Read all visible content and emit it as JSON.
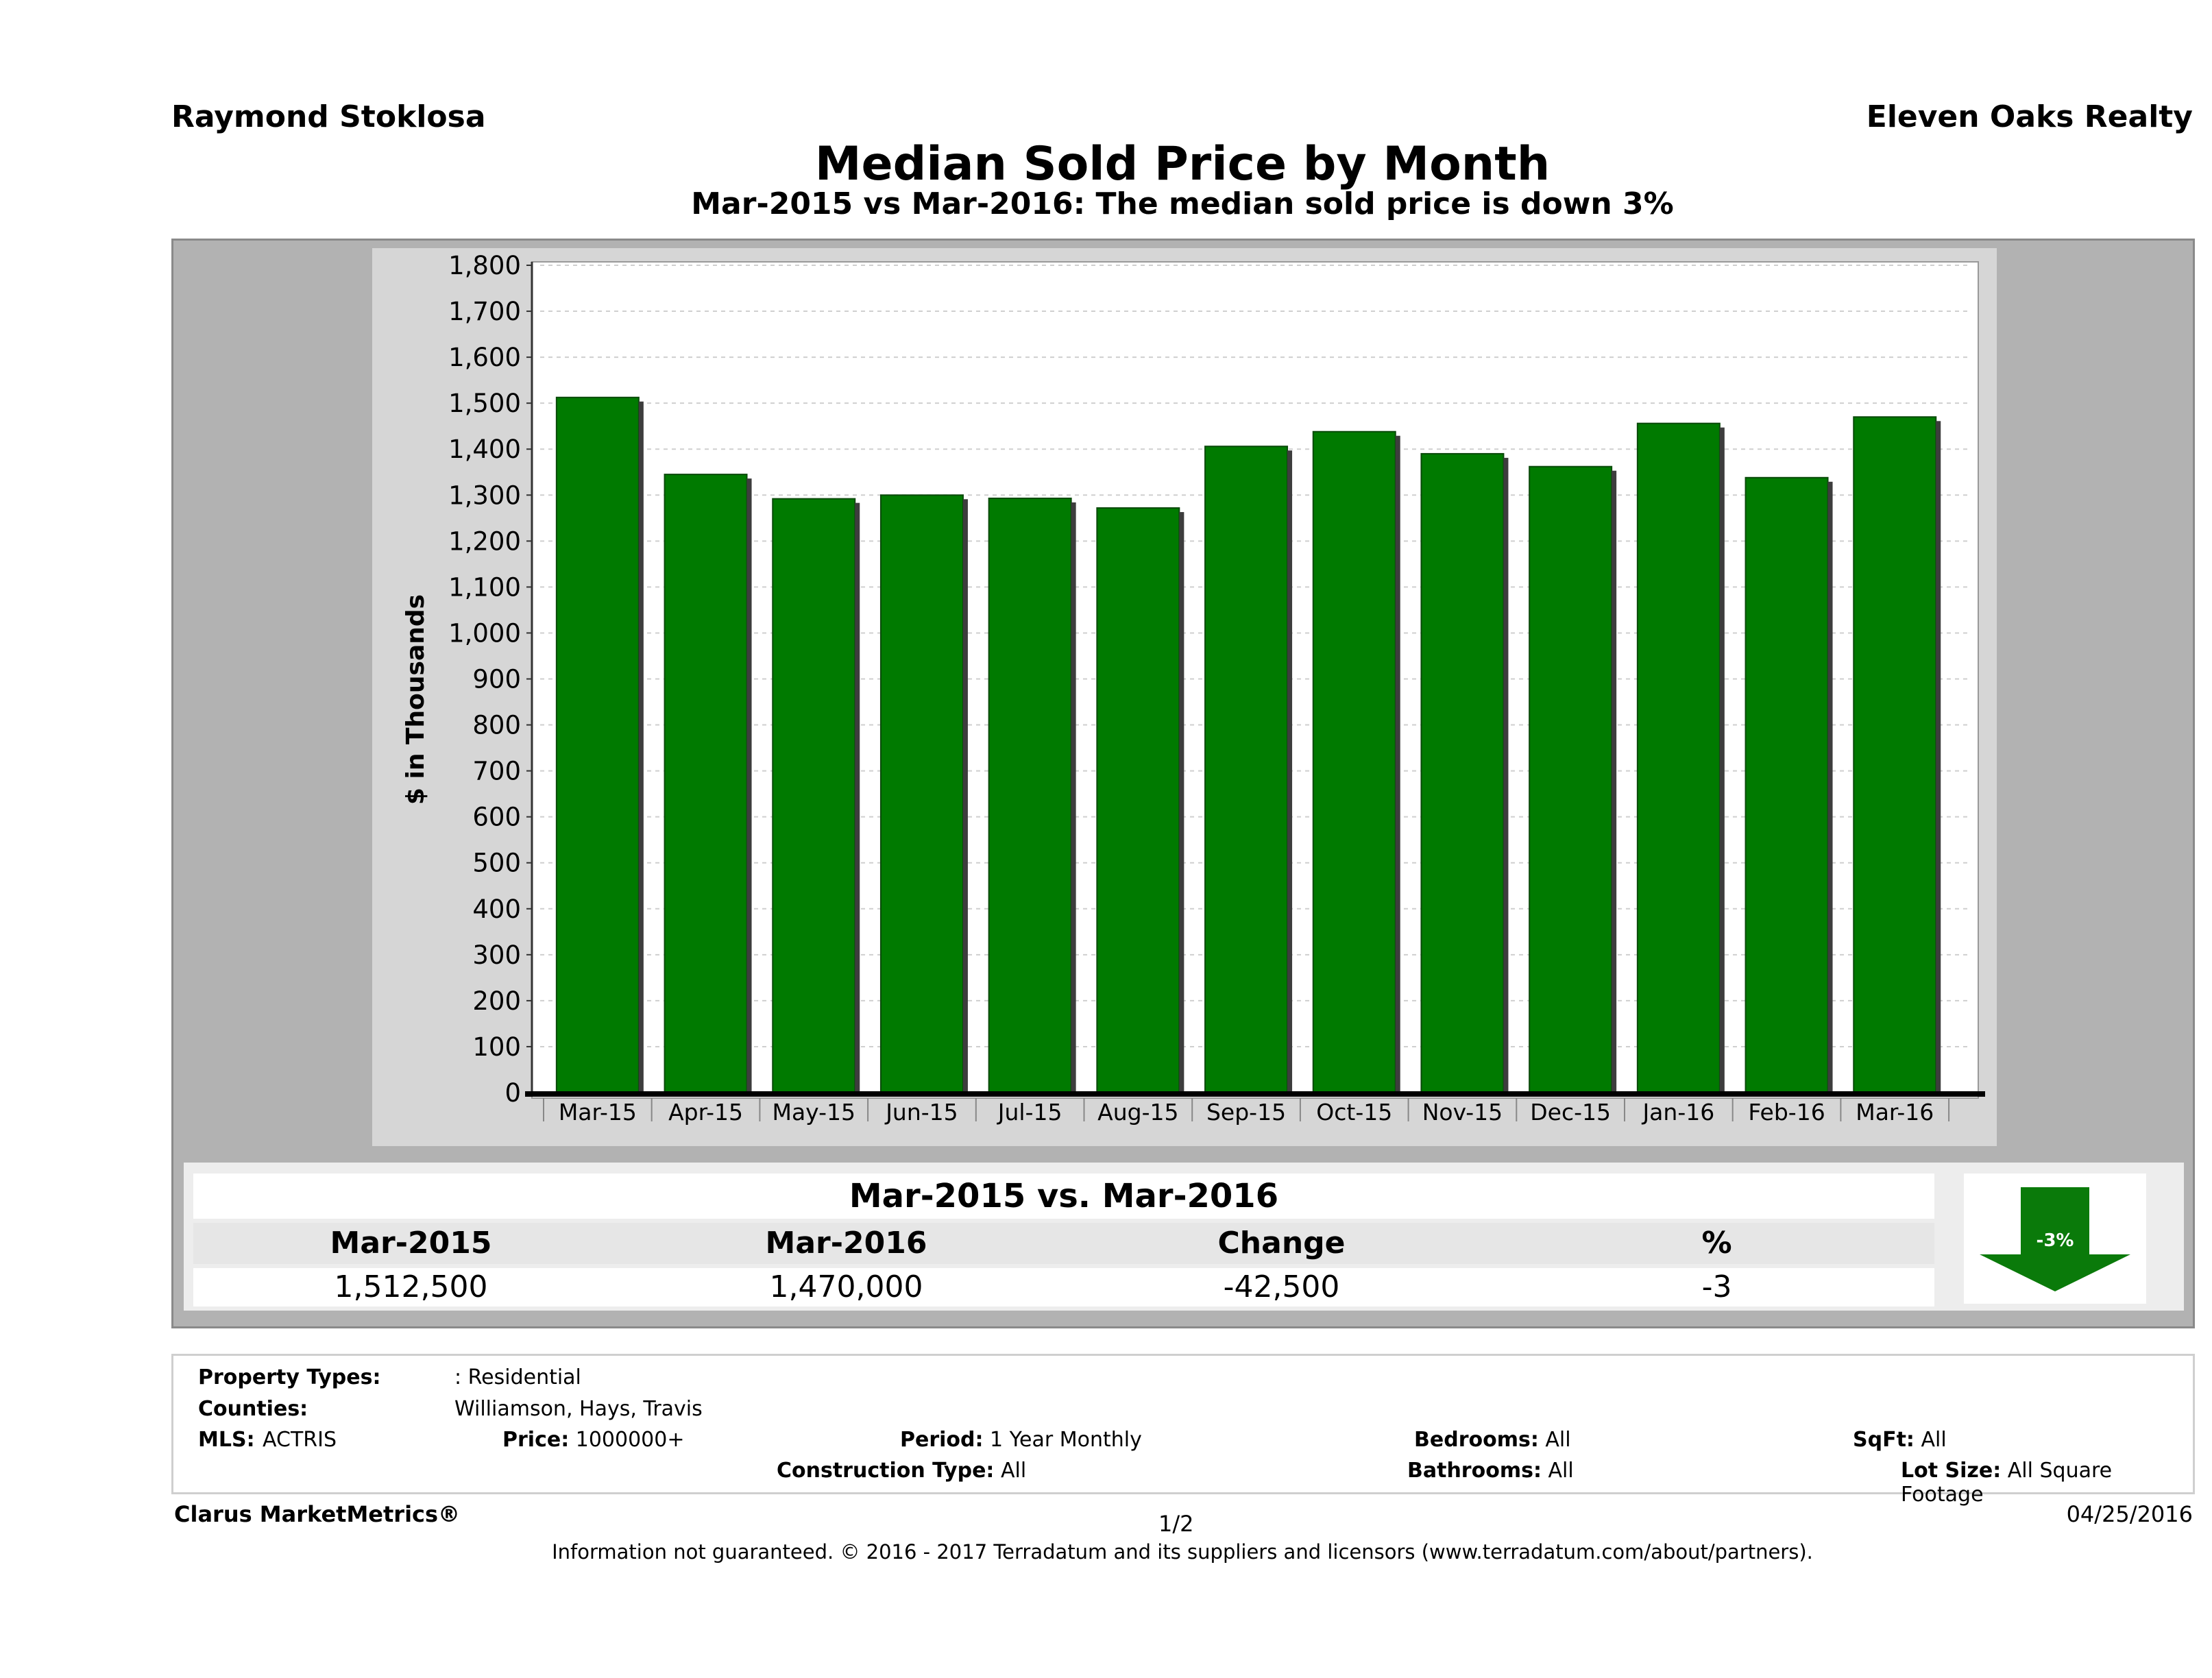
{
  "header": {
    "agent": "Raymond Stoklosa",
    "brokerage": "Eleven Oaks Realty",
    "title": "Median Sold Price by Month",
    "subtitle": "Mar-2015 vs Mar-2016: The median sold price is down 3%"
  },
  "chart_data": {
    "type": "bar",
    "title": "Median Sold Price by Month",
    "ylabel": "$ in Thousands",
    "xlabel": "",
    "categories": [
      "Mar-15",
      "Apr-15",
      "May-15",
      "Jun-15",
      "Jul-15",
      "Aug-15",
      "Sep-15",
      "Oct-15",
      "Nov-15",
      "Dec-15",
      "Jan-16",
      "Feb-16",
      "Mar-16"
    ],
    "values": [
      1512.5,
      1345,
      1292,
      1300,
      1293,
      1272,
      1406,
      1438,
      1390,
      1362,
      1456,
      1338,
      1470
    ],
    "ylim": [
      0,
      1800
    ],
    "yticks": [
      "0",
      "100",
      "200",
      "300",
      "400",
      "500",
      "600",
      "700",
      "800",
      "900",
      "1,000",
      "1,100",
      "1,200",
      "1,300",
      "1,400",
      "1,500",
      "1,600",
      "1,700",
      "1,800"
    ],
    "bar_color": "#007a00",
    "grid": true
  },
  "summary": {
    "title": "Mar-2015 vs. Mar-2016",
    "headers": [
      "Mar-2015",
      "Mar-2016",
      "Change",
      "%"
    ],
    "values": [
      "1,512,500",
      "1,470,000",
      "-42,500",
      "-3"
    ],
    "badge": "-3%"
  },
  "criteria": {
    "property_types_label": "Property Types:",
    "property_types_value": ": Residential",
    "counties_label": "Counties:",
    "counties_value": "Williamson, Hays, Travis",
    "mls_label": "MLS:",
    "mls_value": "ACTRIS",
    "price_label": "Price:",
    "price_value": "1000000+",
    "period_label": "Period:",
    "period_value": "1 Year Monthly",
    "construction_label": "Construction Type:",
    "construction_value": "All",
    "bedrooms_label": "Bedrooms:",
    "bedrooms_value": "All",
    "bathrooms_label": "Bathrooms:",
    "bathrooms_value": "All",
    "sqft_label": "SqFt:",
    "sqft_value": "All",
    "lot_label": "Lot Size:",
    "lot_value": "All Square Footage"
  },
  "footer": {
    "brand": "Clarus MarketMetrics®",
    "page": "1/2",
    "date": "04/25/2016",
    "disclaimer": "Information not guaranteed. © 2016 - 2017 Terradatum and its suppliers and licensors (www.terradatum.com/about/partners)."
  }
}
